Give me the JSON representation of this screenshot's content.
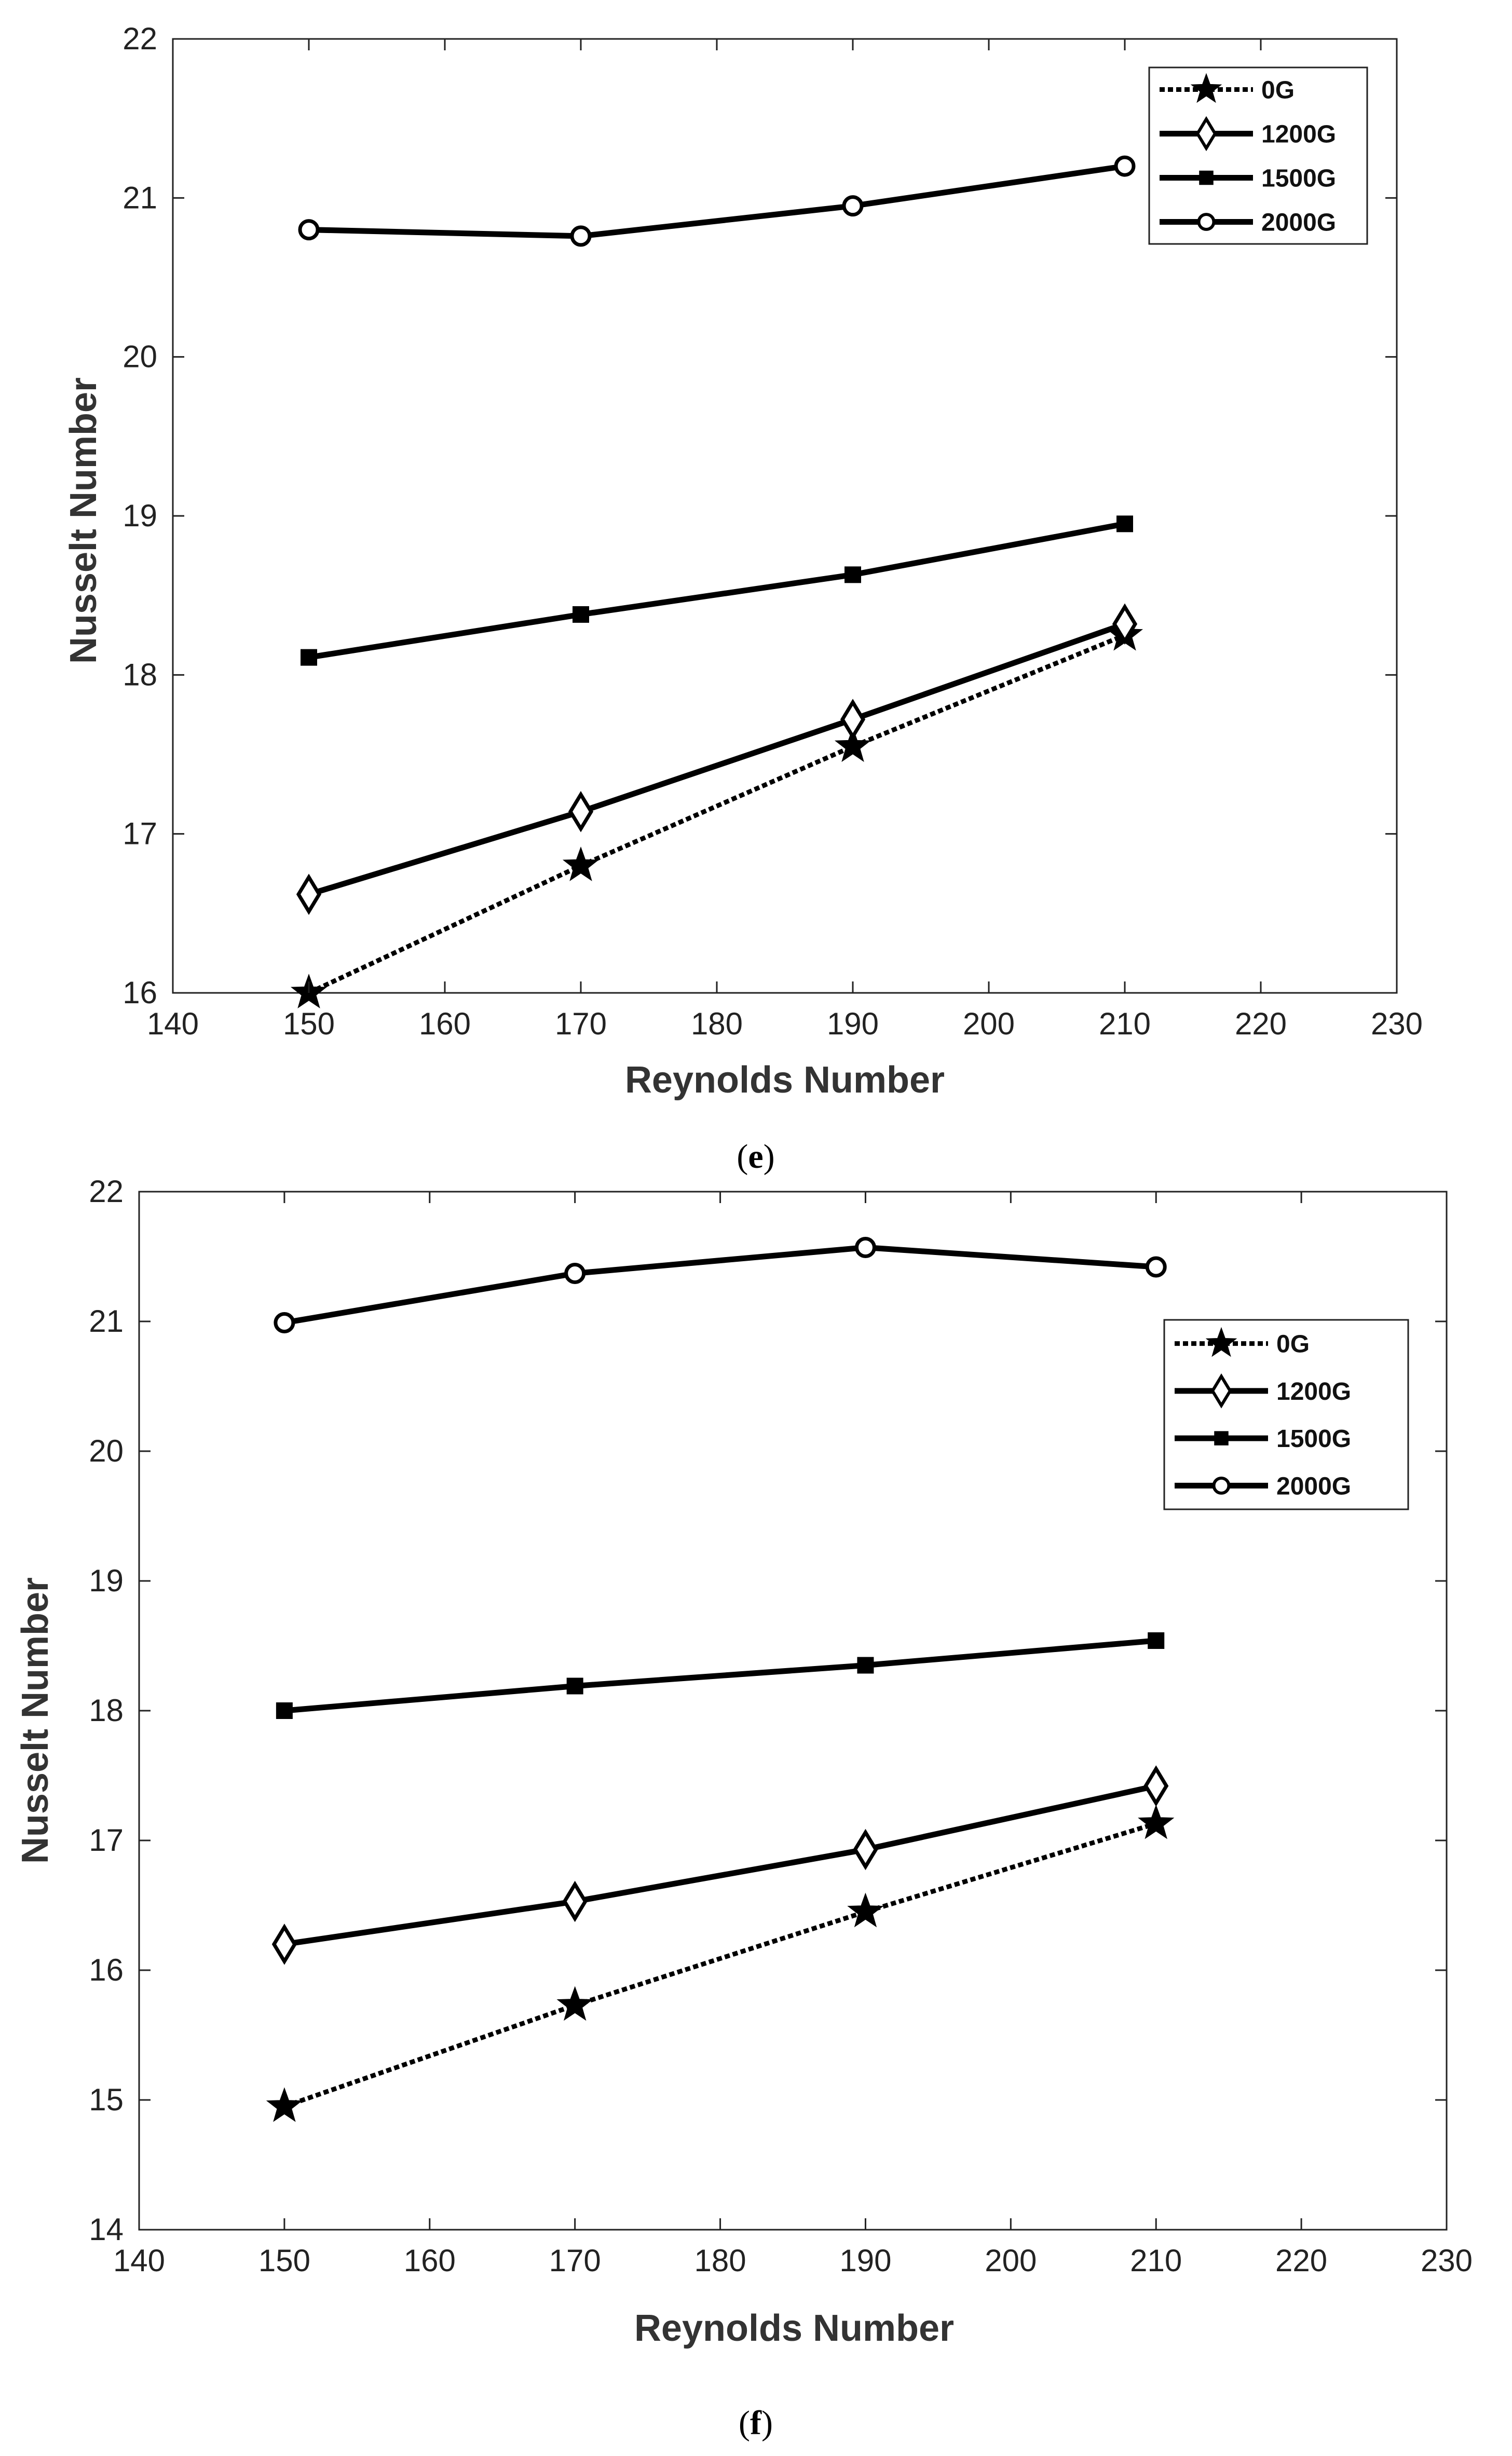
{
  "chart_data": [
    {
      "type": "line",
      "caption_open": "(",
      "caption_letter": "e",
      "caption_close": ")",
      "xlabel": "Reynolds Number",
      "ylabel": "Nusselt Number",
      "xlim": [
        140,
        230
      ],
      "ylim": [
        16,
        22
      ],
      "xticks": [
        140,
        150,
        160,
        170,
        180,
        190,
        200,
        210,
        220,
        230
      ],
      "yticks": [
        16,
        17,
        18,
        19,
        20,
        21,
        22
      ],
      "x": [
        150,
        170,
        190,
        210
      ],
      "legend_position": "top-right",
      "series": [
        {
          "name": "0G",
          "marker": "star",
          "line": "dotted",
          "values": [
            16.0,
            16.8,
            17.55,
            18.25
          ]
        },
        {
          "name": "1200G",
          "marker": "diamond",
          "line": "solid",
          "values": [
            16.62,
            17.14,
            17.72,
            18.32
          ]
        },
        {
          "name": "1500G",
          "marker": "square",
          "line": "solid",
          "values": [
            18.11,
            18.38,
            18.63,
            18.95
          ]
        },
        {
          "name": "2000G",
          "marker": "circle",
          "line": "solid",
          "values": [
            20.8,
            20.76,
            20.95,
            21.2
          ]
        }
      ]
    },
    {
      "type": "line",
      "caption_open": "(",
      "caption_letter": "f",
      "caption_close": ")",
      "xlabel": "Reynolds Number",
      "ylabel": "Nusselt Number",
      "xlim": [
        140,
        230
      ],
      "ylim": [
        14,
        22
      ],
      "xticks": [
        140,
        150,
        160,
        170,
        180,
        190,
        200,
        210,
        220,
        230
      ],
      "yticks": [
        14,
        15,
        16,
        17,
        18,
        19,
        20,
        21,
        22
      ],
      "x": [
        150,
        170,
        190,
        210
      ],
      "legend_position": "top-right",
      "series": [
        {
          "name": "0G",
          "marker": "star",
          "line": "dotted",
          "values": [
            14.95,
            15.73,
            16.45,
            17.13
          ]
        },
        {
          "name": "1200G",
          "marker": "diamond",
          "line": "solid",
          "values": [
            16.2,
            16.53,
            16.93,
            17.42
          ]
        },
        {
          "name": "1500G",
          "marker": "square",
          "line": "solid",
          "values": [
            18.0,
            18.19,
            18.35,
            18.54
          ]
        },
        {
          "name": "2000G",
          "marker": "circle",
          "line": "solid",
          "values": [
            20.99,
            21.37,
            21.57,
            21.42
          ]
        }
      ]
    }
  ]
}
